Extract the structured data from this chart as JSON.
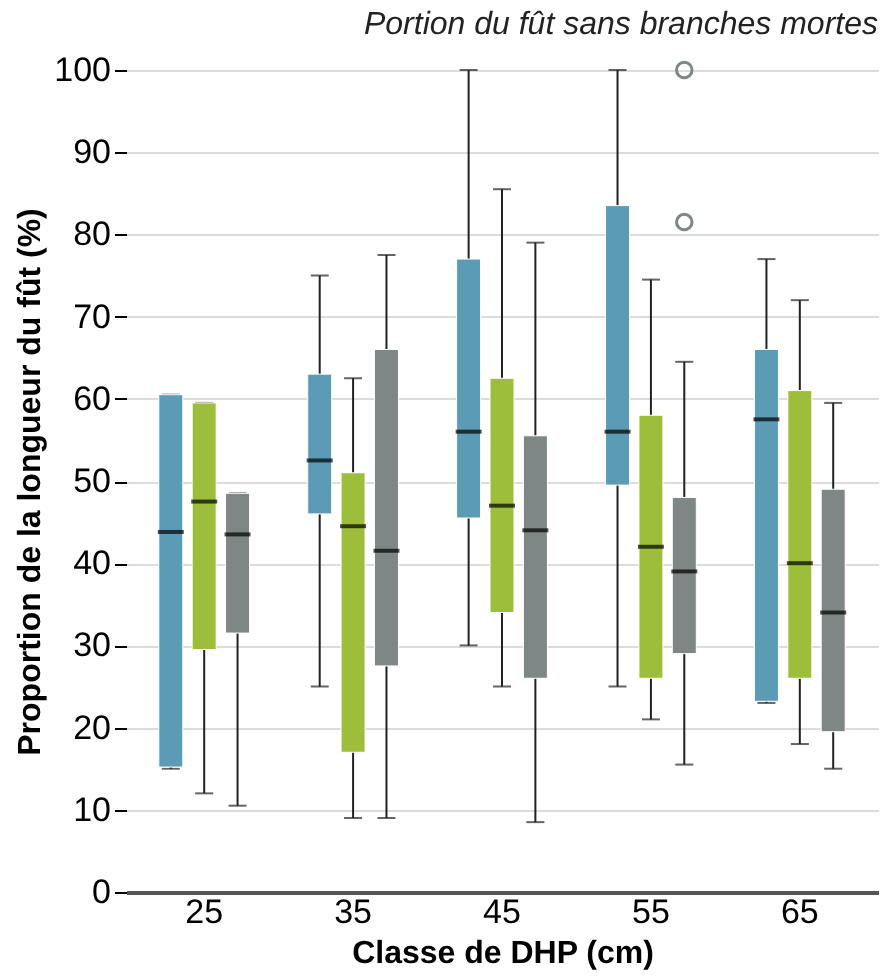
{
  "chart_data": {
    "type": "box",
    "title": "Portion du fût sans branches mortes",
    "xlabel": "Classe de DHP (cm)",
    "ylabel": "Proportion de la longueur du fût (%)",
    "categories": [
      "25",
      "35",
      "45",
      "55",
      "65"
    ],
    "series": [
      {
        "color": "#5b9bb5",
        "boxes": [
          {
            "low": 15,
            "q1": 15.2,
            "median": 43.8,
            "q3": 60.5,
            "high": 60.5
          },
          {
            "low": 25,
            "q1": 46,
            "median": 52.5,
            "q3": 63,
            "high": 75
          },
          {
            "low": 30,
            "q1": 45.5,
            "median": 56,
            "q3": 77,
            "high": 100
          },
          {
            "low": 25,
            "q1": 49.5,
            "median": 56,
            "q3": 83.5,
            "high": 100
          },
          {
            "low": 23,
            "q1": 23.2,
            "median": 57.5,
            "q3": 66,
            "high": 77
          }
        ]
      },
      {
        "color": "#9dbe3a",
        "boxes": [
          {
            "low": 12,
            "q1": 29.5,
            "median": 47.5,
            "q3": 59.5,
            "high": 59.5
          },
          {
            "low": 9,
            "q1": 17,
            "median": 44.5,
            "q3": 51,
            "high": 62.5
          },
          {
            "low": 25,
            "q1": 34,
            "median": 47,
            "q3": 62.5,
            "high": 85.5
          },
          {
            "low": 21,
            "q1": 26,
            "median": 42,
            "q3": 58,
            "high": 74.5
          },
          {
            "low": 18,
            "q1": 26,
            "median": 40,
            "q3": 61,
            "high": 72
          }
        ]
      },
      {
        "color": "#7f8786",
        "boxes": [
          {
            "low": 10.5,
            "q1": 31.5,
            "median": 43.5,
            "q3": 48.5,
            "high": 48.5
          },
          {
            "low": 9,
            "q1": 27.5,
            "median": 41.5,
            "q3": 66,
            "high": 77.5
          },
          {
            "low": 8.5,
            "q1": 26,
            "median": 44,
            "q3": 55.5,
            "high": 79
          },
          {
            "low": 15.5,
            "q1": 29,
            "median": 39,
            "q3": 48,
            "high": 64.5,
            "outliers": [
              100,
              81.5
            ]
          },
          {
            "low": 15,
            "q1": 19.5,
            "median": 34,
            "q3": 49,
            "high": 59.5
          }
        ]
      }
    ],
    "ylim": [
      0,
      100
    ],
    "yticks": [
      0,
      10,
      20,
      30,
      40,
      50,
      60,
      70,
      80,
      90,
      100
    ],
    "grid": "y"
  }
}
